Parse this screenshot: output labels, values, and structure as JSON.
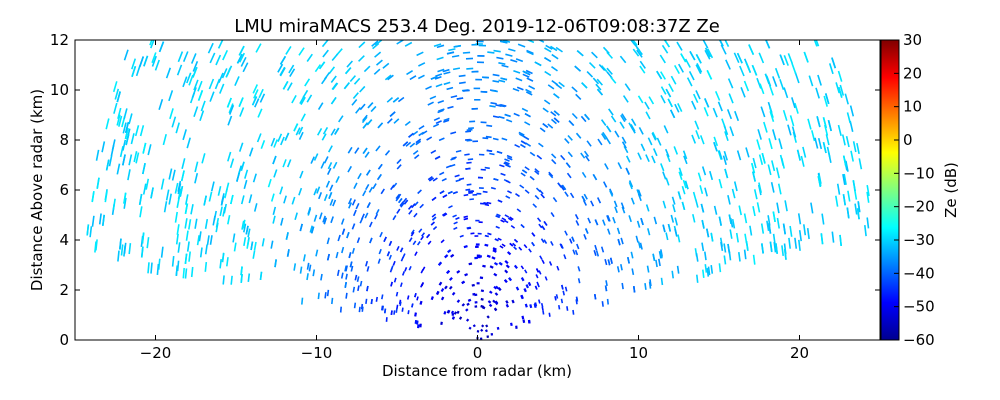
{
  "chart_data": {
    "type": "heatmap",
    "title": "LMU miraMACS 253.4 Deg. 2019-12-06T09:08:37Z  Ze",
    "xlabel": "Distance from radar (km)",
    "ylabel": "Distance Above radar  (km)",
    "xlim": [
      -25,
      25
    ],
    "ylim": [
      0,
      12
    ],
    "x_ticks": [
      -20,
      -10,
      0,
      10,
      20
    ],
    "x_tick_labels": [
      "−20",
      "−10",
      "0",
      "10",
      "20"
    ],
    "y_ticks": [
      0,
      2,
      4,
      6,
      8,
      10,
      12
    ],
    "y_tick_labels": [
      "0",
      "2",
      "4",
      "6",
      "8",
      "10",
      "12"
    ],
    "colorbar": {
      "label": "Ze (dB)",
      "range": [
        -60,
        30
      ],
      "ticks": [
        -60,
        -50,
        -40,
        -30,
        -20,
        -10,
        0,
        10,
        20,
        30
      ],
      "tick_labels": [
        "−60",
        "−50",
        "−40",
        "−30",
        "−20",
        "−10",
        "0",
        "10",
        "20",
        "30"
      ],
      "colormap": "jet"
    },
    "scan": {
      "range_max_km": 25,
      "elevation_min_deg": 10,
      "elevation_max_deg": 172,
      "reflectivity_near_dB": -55,
      "reflectivity_far_dB": -30
    }
  }
}
